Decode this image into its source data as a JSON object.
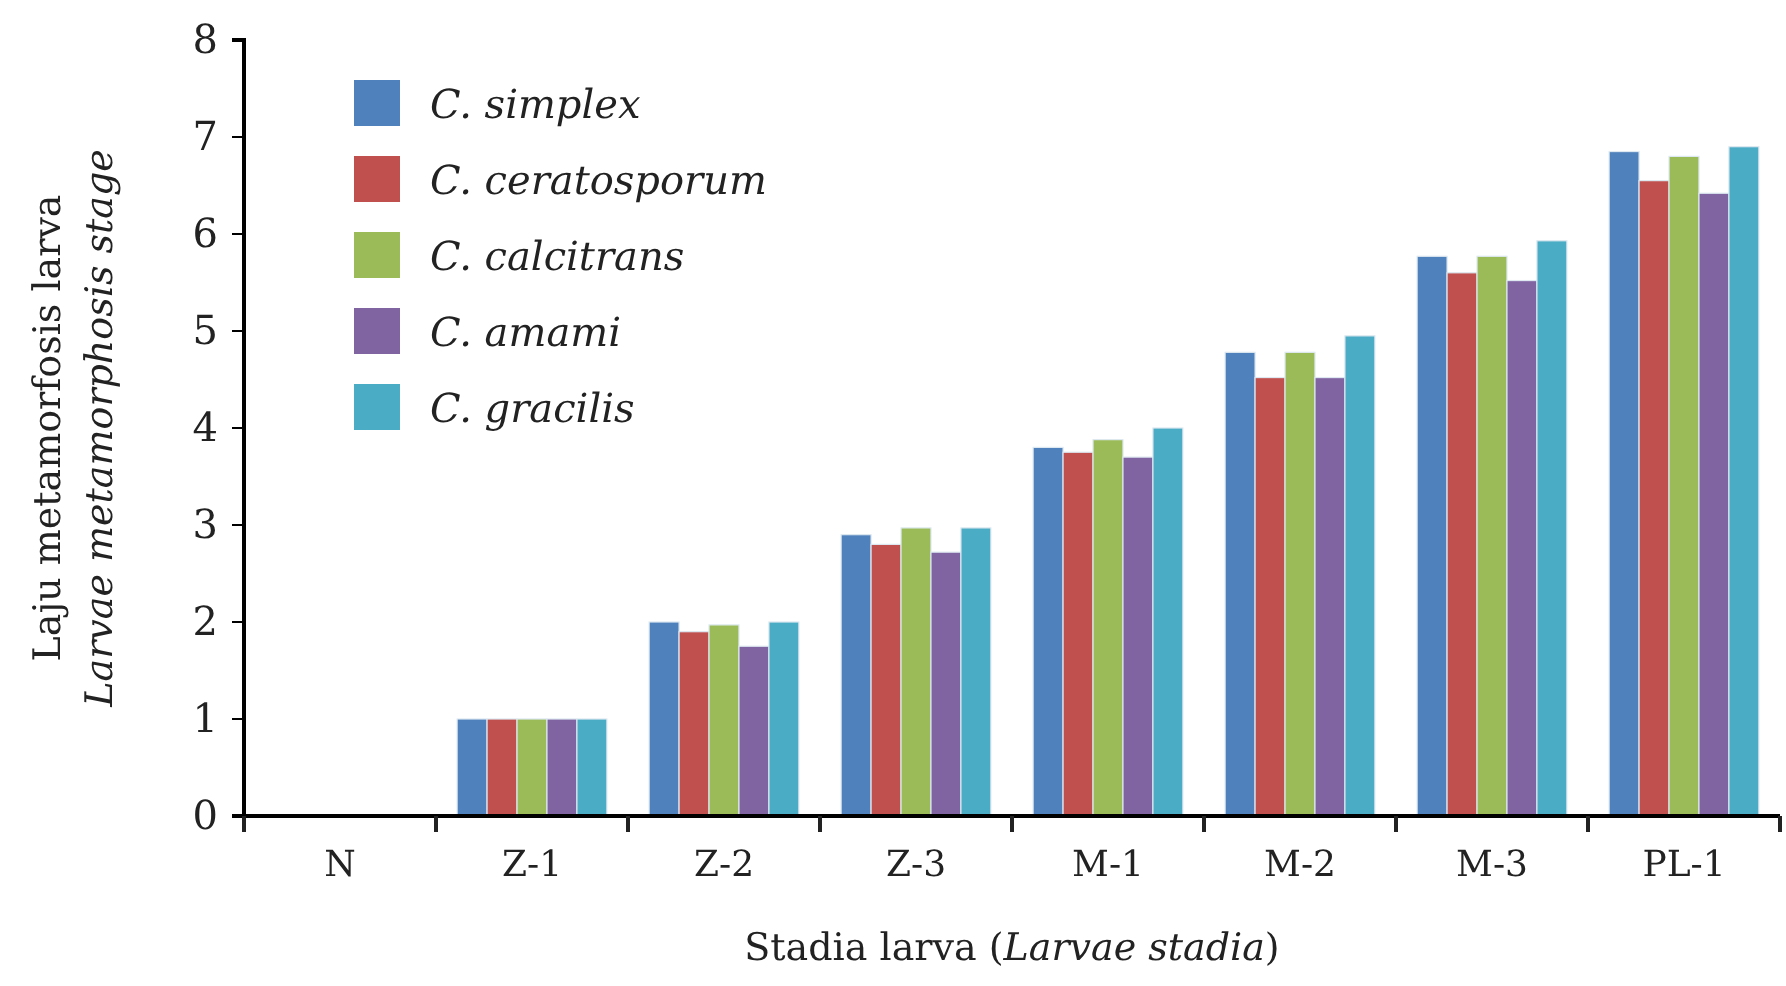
{
  "chart_data": {
    "type": "bar",
    "xlabel": "Stadia larva (Larvae stadia)",
    "ylabel": "Laju metamorfosis larva\nLarvae metamorphosis stage",
    "categories": [
      "N",
      "Z-1",
      "Z-2",
      "Z-3",
      "M-1",
      "M-2",
      "M-3",
      "PL-1"
    ],
    "series": [
      {
        "name": "C. simplex",
        "color": "#4f81bd",
        "values": [
          0,
          1,
          2.0,
          2.9,
          3.8,
          4.78,
          5.77,
          6.85
        ]
      },
      {
        "name": "C. ceratosporum",
        "color": "#c0504d",
        "values": [
          0,
          1,
          1.9,
          2.8,
          3.75,
          4.52,
          5.6,
          6.55
        ]
      },
      {
        "name": "C. calcitrans",
        "color": "#9bbb59",
        "values": [
          0,
          1,
          1.97,
          2.97,
          3.88,
          4.78,
          5.77,
          6.8
        ]
      },
      {
        "name": "C. amami",
        "color": "#8064a2",
        "values": [
          0,
          1,
          1.75,
          2.72,
          3.7,
          4.52,
          5.52,
          6.42
        ]
      },
      {
        "name": "C. gracilis",
        "color": "#4bacc6",
        "values": [
          0,
          1,
          2.0,
          2.97,
          4.0,
          4.95,
          5.93,
          6.9
        ]
      }
    ],
    "ylim": [
      0,
      8
    ],
    "yticks": [
      0,
      1,
      2,
      3,
      4,
      5,
      6,
      7,
      8
    ],
    "grid": false,
    "legend": "top left"
  }
}
